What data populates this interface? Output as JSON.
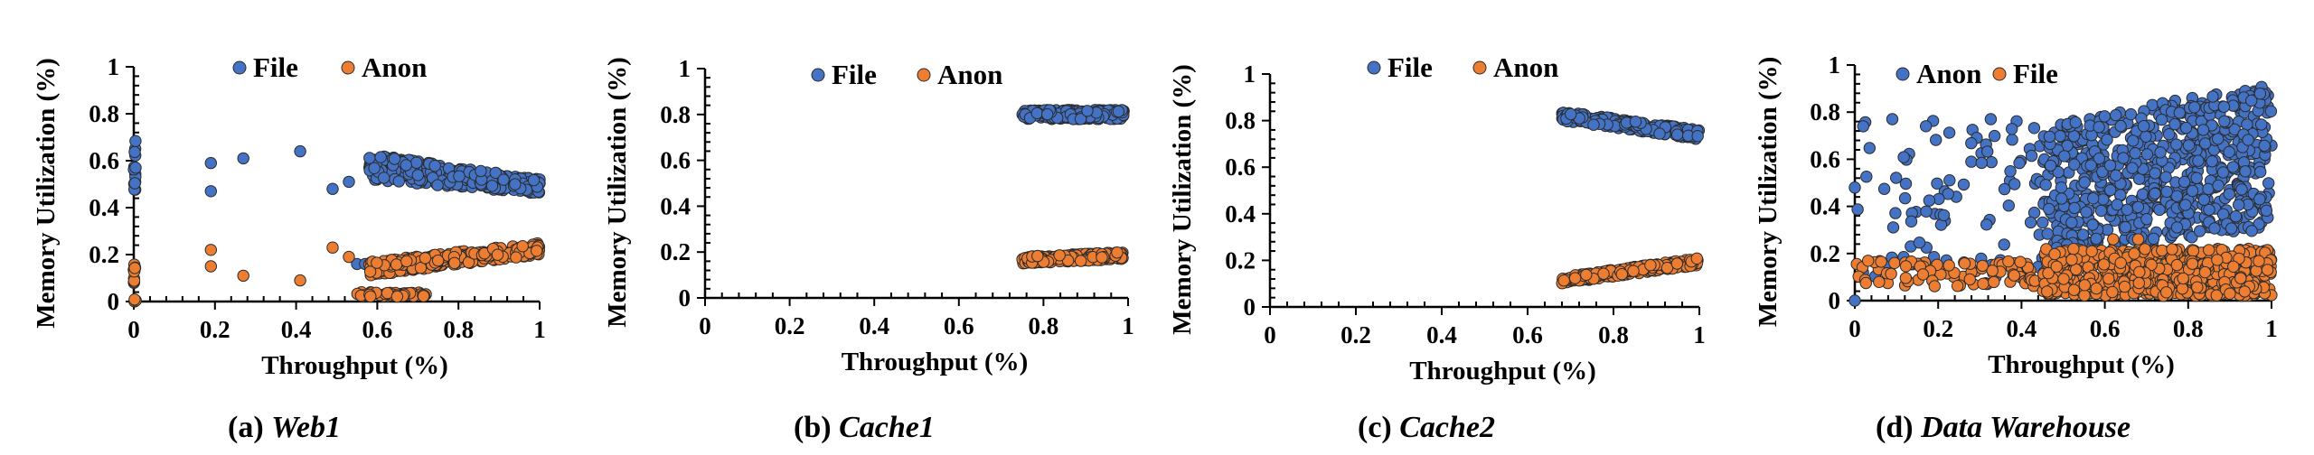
{
  "chart_data": [
    {
      "type": "scatter",
      "caption_label": "(a)",
      "caption_subject": "Web1",
      "xlabel": "Throughput (%)",
      "ylabel": "Memory Utilization (%)",
      "xlim": [
        0,
        1
      ],
      "ylim": [
        0,
        1
      ],
      "x_ticks": [
        "0",
        "0.2",
        "0.4",
        "0.6",
        "0.8",
        "1"
      ],
      "y_ticks": [
        "0",
        "0.2",
        "0.4",
        "0.6",
        "0.8",
        "1"
      ],
      "grid": false,
      "legend_position": "top",
      "series": [
        {
          "name": "File",
          "color": "#4472c4",
          "clusters": [
            {
              "x": [
                0,
                0.005
              ],
              "y": [
                0.46,
                0.7
              ],
              "n": 14
            },
            {
              "x": [
                0.58,
                1.0
              ],
              "y_start": [
                0.52,
                0.63
              ],
              "y_end": [
                0.46,
                0.52
              ],
              "n": 330
            }
          ],
          "points": [
            [
              0.19,
              0.59
            ],
            [
              0.19,
              0.47
            ],
            [
              0.27,
              0.61
            ],
            [
              0.41,
              0.64
            ],
            [
              0.49,
              0.48
            ],
            [
              0.53,
              0.51
            ],
            [
              0.55,
              0.16
            ],
            [
              0.57,
              0.16
            ]
          ]
        },
        {
          "name": "Anon",
          "color": "#ed7d31",
          "clusters": [
            {
              "x": [
                0,
                0.005
              ],
              "y": [
                0.0,
                0.2
              ],
              "n": 14
            },
            {
              "x": [
                0.55,
                0.72
              ],
              "y": [
                0.02,
                0.04
              ],
              "n": 50
            },
            {
              "x": [
                0.58,
                1.0
              ],
              "y_start": [
                0.11,
                0.17
              ],
              "y_end": [
                0.2,
                0.25
              ],
              "n": 330
            }
          ],
          "points": [
            [
              0.19,
              0.22
            ],
            [
              0.19,
              0.15
            ],
            [
              0.27,
              0.11
            ],
            [
              0.41,
              0.09
            ],
            [
              0.49,
              0.23
            ],
            [
              0.53,
              0.19
            ]
          ]
        }
      ]
    },
    {
      "type": "scatter",
      "caption_label": "(b)",
      "caption_subject": "Cache1",
      "xlabel": "Throughput (%)",
      "ylabel": "Memory Utilization (%)",
      "xlim": [
        0,
        1
      ],
      "ylim": [
        0,
        1
      ],
      "x_ticks": [
        "0",
        "0.2",
        "0.4",
        "0.6",
        "0.8",
        "1"
      ],
      "y_ticks": [
        "0",
        "0.2",
        "0.4",
        "0.6",
        "0.8",
        "1"
      ],
      "grid": false,
      "legend_position": "top",
      "series": [
        {
          "name": "File",
          "color": "#4472c4",
          "clusters": [
            {
              "x": [
                0.75,
                0.99
              ],
              "y": [
                0.78,
                0.82
              ],
              "n": 260
            }
          ],
          "points": []
        },
        {
          "name": "Anon",
          "color": "#ed7d31",
          "clusters": [
            {
              "x": [
                0.75,
                0.99
              ],
              "y_start": [
                0.15,
                0.18
              ],
              "y_end": [
                0.17,
                0.2
              ],
              "n": 260
            }
          ],
          "points": []
        }
      ]
    },
    {
      "type": "scatter",
      "caption_label": "(c)",
      "caption_subject": "Cache2",
      "xlabel": "Throughput (%)",
      "ylabel": "Memory Utilization (%)",
      "xlim": [
        0,
        1
      ],
      "ylim": [
        0,
        1
      ],
      "x_ticks": [
        "0",
        "0.2",
        "0.4",
        "0.6",
        "0.8",
        "1"
      ],
      "y_ticks": [
        "0",
        "0.2",
        "0.4",
        "0.6",
        "0.8",
        "1"
      ],
      "grid": false,
      "legend_position": "top",
      "series": [
        {
          "name": "File",
          "color": "#4472c4",
          "clusters": [
            {
              "x": [
                0.68,
                1.0
              ],
              "y_start": [
                0.8,
                0.84
              ],
              "y_end": [
                0.72,
                0.76
              ],
              "n": 260
            }
          ],
          "points": []
        },
        {
          "name": "Anon",
          "color": "#ed7d31",
          "clusters": [
            {
              "x": [
                0.68,
                1.0
              ],
              "y_start": [
                0.1,
                0.13
              ],
              "y_end": [
                0.18,
                0.21
              ],
              "n": 260
            }
          ],
          "points": []
        }
      ]
    },
    {
      "type": "scatter",
      "caption_label": "(d)",
      "caption_subject": "Data Warehouse",
      "xlabel": "Throughput (%)",
      "ylabel": "Memory Utilization (%)",
      "xlim": [
        0,
        1
      ],
      "ylim": [
        0,
        1
      ],
      "x_ticks": [
        "0",
        "0.2",
        "0.4",
        "0.6",
        "0.8",
        "1"
      ],
      "y_ticks": [
        "0",
        "0.2",
        "0.4",
        "0.6",
        "0.8",
        "1"
      ],
      "grid": false,
      "legend_position": "top",
      "series": [
        {
          "name": "Anon",
          "color": "#4472c4",
          "clusters": [
            {
              "x": [
                0.0,
                0.45
              ],
              "y": [
                0.1,
                0.78
              ],
              "n": 90
            },
            {
              "x": [
                0.45,
                1.0
              ],
              "y_start": [
                0.2,
                0.75
              ],
              "y_end": [
                0.3,
                0.92
              ],
              "n": 700
            }
          ],
          "points": [
            [
              0.0,
              0.0
            ],
            [
              0.0,
              0.48
            ],
            [
              0.09,
              0.77
            ]
          ]
        },
        {
          "name": "File",
          "color": "#ed7d31",
          "clusters": [
            {
              "x": [
                0.0,
                0.45
              ],
              "y": [
                0.06,
                0.17
              ],
              "n": 90
            },
            {
              "x": [
                0.45,
                1.0
              ],
              "y": [
                0.02,
                0.22
              ],
              "n": 700
            }
          ],
          "points": [
            [
              0.62,
              0.26
            ],
            [
              0.68,
              0.26
            ],
            [
              0.9,
              0.03
            ]
          ]
        }
      ]
    }
  ]
}
